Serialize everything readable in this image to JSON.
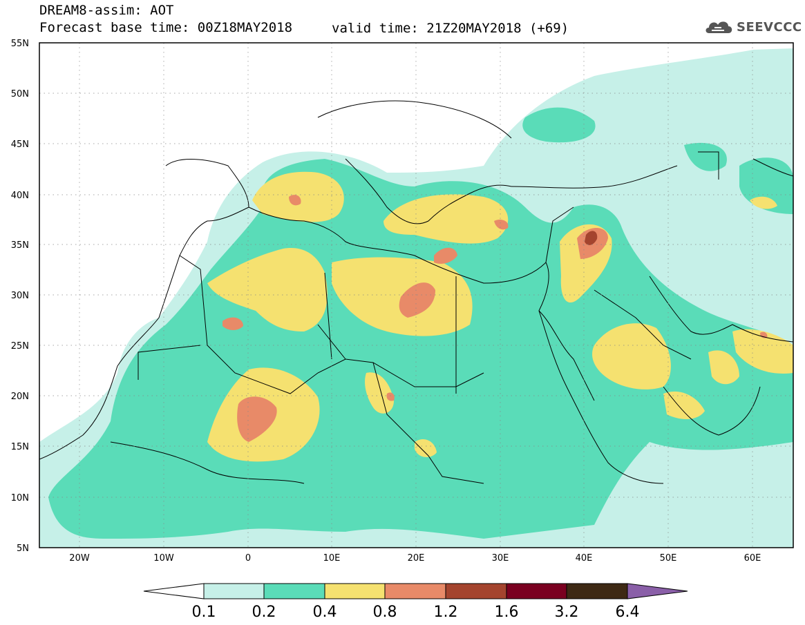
{
  "header": {
    "title": "DREAM8-assim: AOT",
    "base_time": "Forecast base time: 00Z18MAY2018",
    "valid_time": "valid time: 21Z20MAY2018 (+69)",
    "logo_text": "SEEVCCC"
  },
  "map": {
    "lat_ticks": [
      "55N",
      "50N",
      "45N",
      "40N",
      "35N",
      "30N",
      "25N",
      "20N",
      "15N",
      "10N",
      "5N"
    ],
    "lon_ticks": [
      "20W",
      "10W",
      "0",
      "10E",
      "20E",
      "30E",
      "40E",
      "50E",
      "60E"
    ]
  },
  "colorbar": {
    "labels": [
      "0.1",
      "0.2",
      "0.4",
      "0.8",
      "1.2",
      "1.6",
      "3.2",
      "6.4"
    ],
    "colors": [
      "#ffffff",
      "#c6f0e8",
      "#5adcb8",
      "#f5e170",
      "#e88a68",
      "#a4442e",
      "#7a0020",
      "#3e2914",
      "#8a5fa8"
    ]
  },
  "colors": {
    "very_light": "#c6f0e8",
    "light": "#5adcb8",
    "medium": "#f5e170",
    "high": "#e88a68",
    "very_high": "#a4442e"
  }
}
